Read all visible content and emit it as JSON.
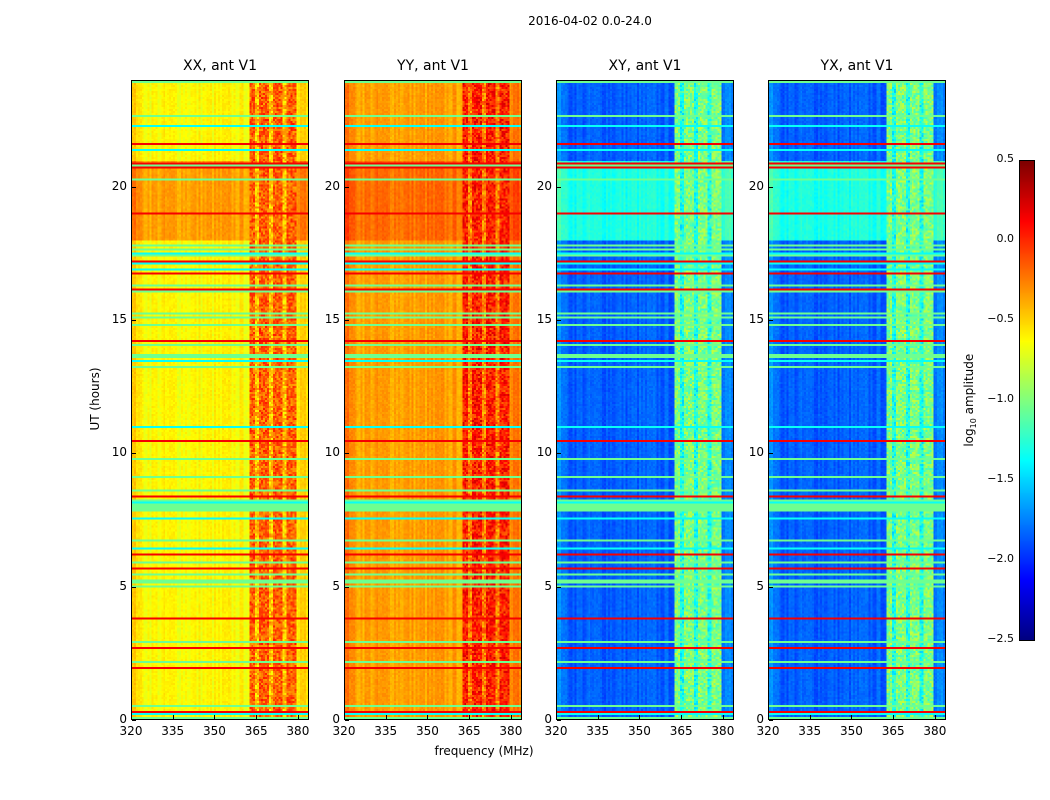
{
  "chart_data": {
    "type": "heatmap",
    "title": "2016-04-02 0.0-24.0",
    "xlabel": "frequency (MHz)",
    "ylabel": "UT (hours)",
    "xlim": [
      320,
      384
    ],
    "ylim": [
      0,
      24
    ],
    "xticks": [
      320,
      335,
      350,
      365,
      380
    ],
    "yticks": [
      0,
      5,
      10,
      15,
      20
    ],
    "colorbar": {
      "label": "log10 amplitude",
      "label_main": "log",
      "label_sub": "10",
      "label_tail": " amplitude",
      "range": [
        -2.5,
        0.5
      ],
      "ticks": [
        "0.5",
        "0.0",
        "−0.5",
        "−1.0",
        "−1.5",
        "−2.0",
        "−2.5"
      ],
      "tick_values": [
        0.5,
        0,
        -0.5,
        -1,
        -1.5,
        -2,
        -2.5
      ],
      "colormap": "jet"
    },
    "rfi_band_mhz": [
      363,
      380
    ],
    "red_line_hours": [
      2.4,
      3.1,
      3.3,
      5.0,
      6.8,
      7.2,
      7.8,
      9.8,
      13.5,
      15.6,
      17.8,
      18.3,
      20.2,
      21.3,
      22.1,
      23.7
    ],
    "panels": [
      {
        "title": "XX, ant V1",
        "base": -0.62,
        "band": -0.15,
        "evening": -0.35
      },
      {
        "title": "YY, ant V1",
        "base": -0.35,
        "band": 0.05,
        "evening": -0.2
      },
      {
        "title": "XY, ant V1",
        "base": -1.85,
        "band": -1.0,
        "evening": -1.3
      },
      {
        "title": "YX, ant V1",
        "base": -1.85,
        "band": -1.0,
        "evening": -1.3
      }
    ]
  }
}
